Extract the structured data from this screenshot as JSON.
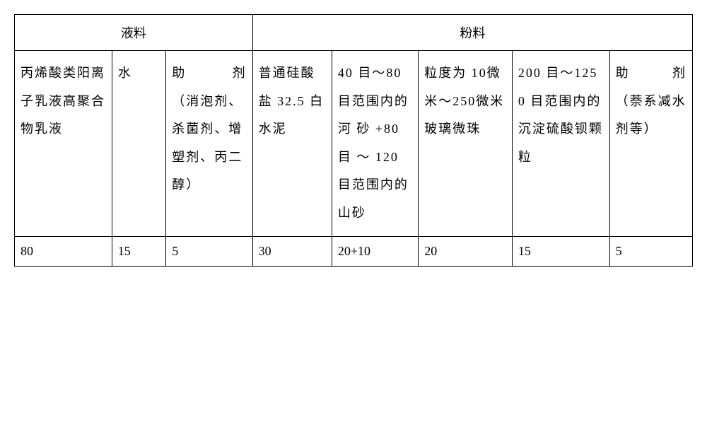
{
  "table": {
    "header_row": {
      "liquid_label": "液料",
      "powder_label": "粉料"
    },
    "content_row": {
      "col1": "丙烯酸类阳离子乳液高聚合物乳液",
      "col2": "水",
      "col3_line1a": "助",
      "col3_line1b": "剂",
      "col3_rest": "（消泡剂、杀菌剂、增 塑剂、丙二醇）",
      "col4": "普通硅酸 盐 32.5 白水泥",
      "col5": "40 目～80 目范围内的河 砂 +80目 ～ 120 目范围内的山砂",
      "col6": "粒度为 10微米～250微米玻璃微珠",
      "col7": "200 目～1250 目范围内的沉淀硫酸钡颗粒",
      "col8_line1a": "助",
      "col8_line1b": "剂",
      "col8_rest": "（萘系减水剂等）"
    },
    "data_row": {
      "col1": "80",
      "col2": "15",
      "col3": "5",
      "col4": "30",
      "col5": "20+10",
      "col6": "20",
      "col7": "15",
      "col8": "5"
    }
  }
}
